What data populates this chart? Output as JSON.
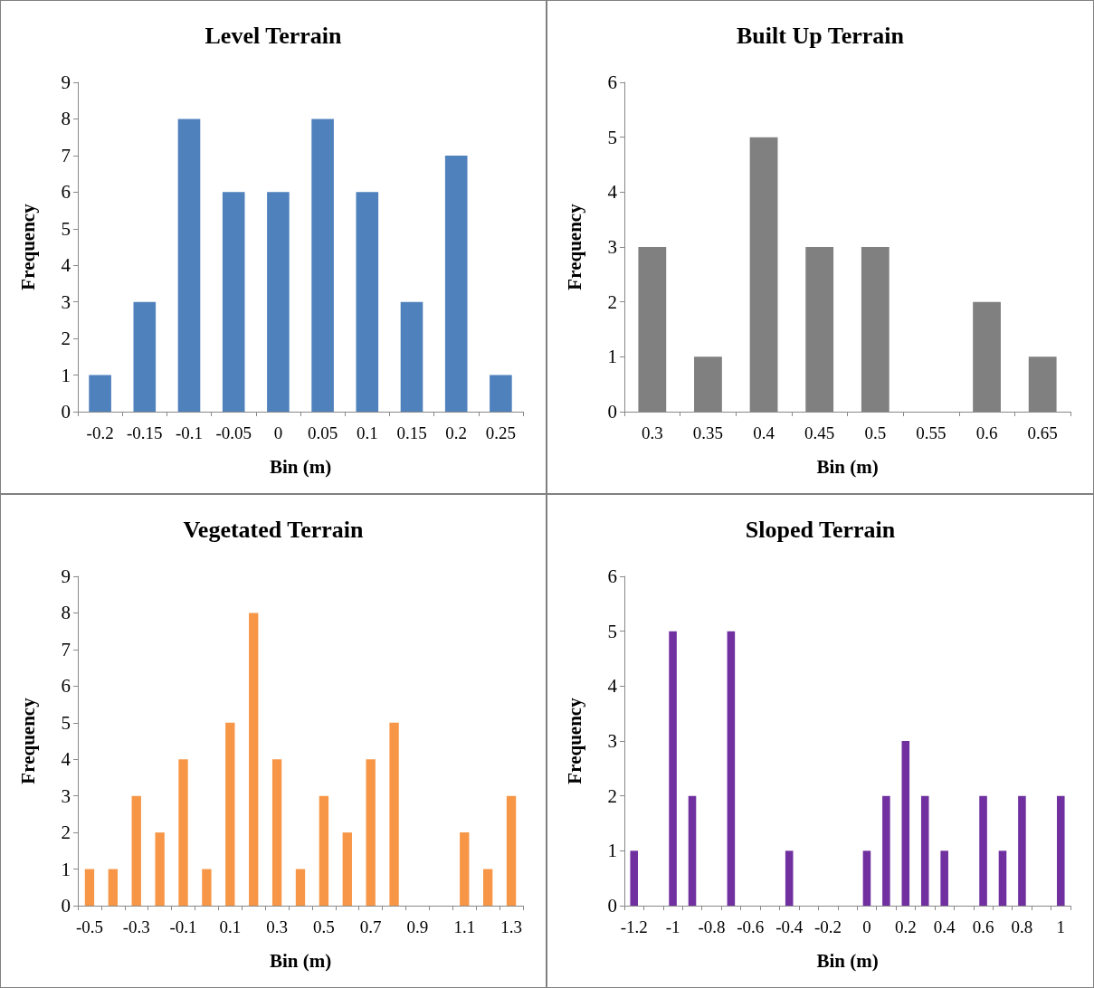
{
  "chart_data": [
    {
      "type": "bar",
      "title": "Level Terrain",
      "xlabel": "Bin (m)",
      "ylabel": "Frequency",
      "categories": [
        "-0.2",
        "-0.15",
        "-0.1",
        "-0.05",
        "0",
        "0.05",
        "0.1",
        "0.15",
        "0.2",
        "0.25"
      ],
      "values": [
        1,
        3,
        8,
        6,
        6,
        8,
        6,
        3,
        7,
        1
      ],
      "color": "#4f81bd",
      "ylim": [
        0,
        9
      ],
      "yticks": [
        0,
        1,
        2,
        3,
        4,
        5,
        6,
        7,
        8,
        9
      ]
    },
    {
      "type": "bar",
      "title": "Built Up Terrain",
      "xlabel": "Bin (m)",
      "ylabel": "Frequency",
      "categories": [
        "0.3",
        "0.35",
        "0.4",
        "0.45",
        "0.5",
        "0.55",
        "0.6",
        "0.65"
      ],
      "values": [
        3,
        1,
        5,
        3,
        3,
        0,
        2,
        1
      ],
      "color": "#808080",
      "ylim": [
        0,
        6
      ],
      "yticks": [
        0,
        1,
        2,
        3,
        4,
        5,
        6
      ]
    },
    {
      "type": "bar",
      "title": "Vegetated Terrain",
      "xlabel": "Bin (m)",
      "ylabel": "Frequency",
      "categories": [
        "-0.5",
        null,
        "-0.3",
        null,
        "-0.1",
        null,
        "0.1",
        null,
        "0.3",
        null,
        "0.5",
        null,
        "0.7",
        null,
        "0.9",
        null,
        "1.1",
        null,
        "1.3"
      ],
      "values": [
        1,
        1,
        3,
        2,
        4,
        1,
        5,
        8,
        4,
        1,
        3,
        2,
        4,
        5,
        0,
        0,
        2,
        1,
        3
      ],
      "color": "#f79646",
      "ylim": [
        0,
        9
      ],
      "yticks": [
        0,
        1,
        2,
        3,
        4,
        5,
        6,
        7,
        8,
        9
      ]
    },
    {
      "type": "bar",
      "title": "Sloped Terrain",
      "xlabel": "Bin (m)",
      "ylabel": "Frequency",
      "categories": [
        "-1.2",
        null,
        "-1",
        null,
        "-0.8",
        null,
        "-0.6",
        null,
        "-0.4",
        null,
        "-0.2",
        null,
        "0",
        null,
        "0.2",
        null,
        "0.4",
        null,
        "0.6",
        null,
        "0.8",
        null,
        "1"
      ],
      "values": [
        1,
        0,
        5,
        2,
        0,
        5,
        0,
        0,
        1,
        0,
        0,
        0,
        1,
        2,
        3,
        2,
        1,
        0,
        2,
        1,
        2,
        0,
        2
      ],
      "color": "#7030a0",
      "ylim": [
        0,
        6
      ],
      "yticks": [
        0,
        1,
        2,
        3,
        4,
        5,
        6
      ]
    }
  ]
}
